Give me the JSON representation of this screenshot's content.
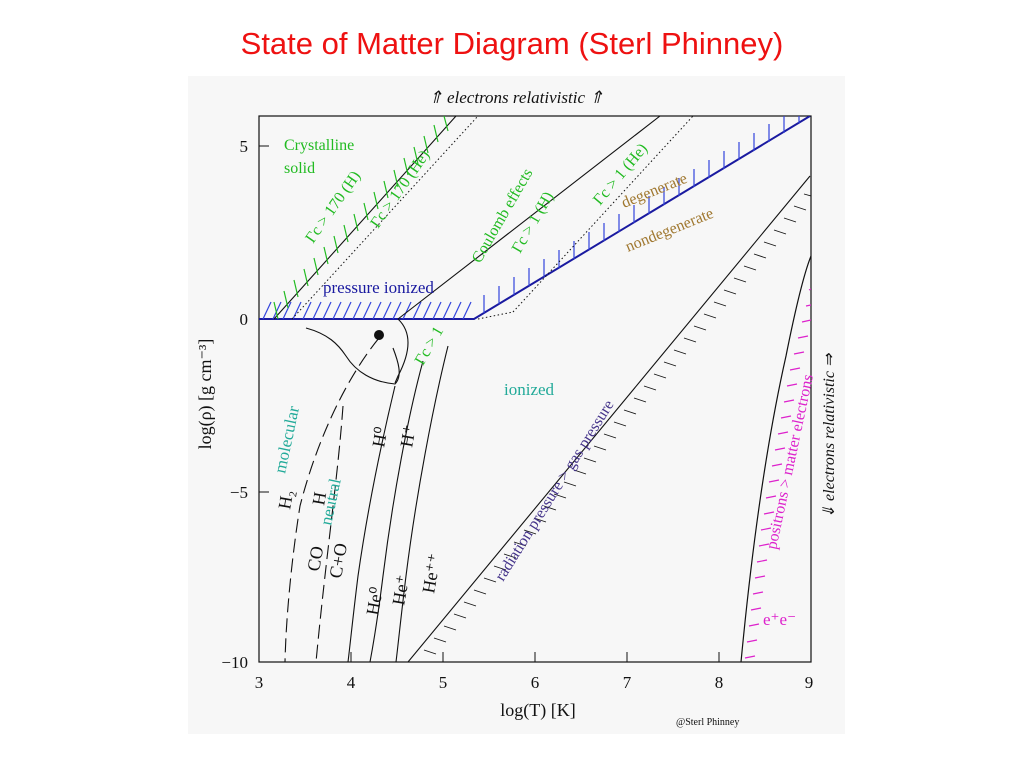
{
  "slide_title": "State of Matter Diagram (Sterl Phinney)",
  "colors": {
    "title": "#ee1111",
    "green": "#22bb22",
    "blue": "#1a1aa0",
    "hatch_blue": "#3344dd",
    "brown": "#a07830",
    "teal": "#22aa99",
    "magenta": "#dd22cc",
    "purple": "#44338a",
    "black": "#111111"
  },
  "diagram": {
    "top_label": "⇑ electrons relativistic ⇑",
    "right_label": "⇓ electrons relativistic ⇒",
    "x_axis_label": "log(T)  [K]",
    "y_axis_label": "log(ρ)  [g cm⁻³]",
    "x_ticks": [
      "3",
      "4",
      "5",
      "6",
      "7",
      "8",
      "9"
    ],
    "y_ticks": [
      "5",
      "0",
      "−5",
      "−10"
    ],
    "regions": {
      "crystalline": "Crystalline",
      "solid": "solid",
      "gamma_170_h": "Γc > 170 (H)",
      "gamma_170_he": "Γc > 170 (He)",
      "coulomb": "Coulomb effects",
      "gamma_1_h": "Γc > 1 (H)",
      "gamma_1_he": "Γc > 1 (He)",
      "degenerate": "degenerate",
      "nondegenerate": "nondegenerate",
      "pressure_ionized": "pressure ionized",
      "gamma_1": "Γc > 1",
      "ionized": "ionized",
      "molecular": "molecular",
      "neutral": "neutral",
      "h2": "H₂",
      "h": "H",
      "h0": "H⁰",
      "hplus": "H⁺",
      "co": "CO",
      "cpo": "C+O",
      "he0": "He⁰",
      "heplus": "He⁺",
      "heplusplus": "He⁺⁺",
      "radiation": "radiation pressure > gas pressure",
      "positrons": "positrons > matter electrons",
      "pairs": "e⁺e⁻"
    },
    "credit": "@Sterl Phinney"
  }
}
